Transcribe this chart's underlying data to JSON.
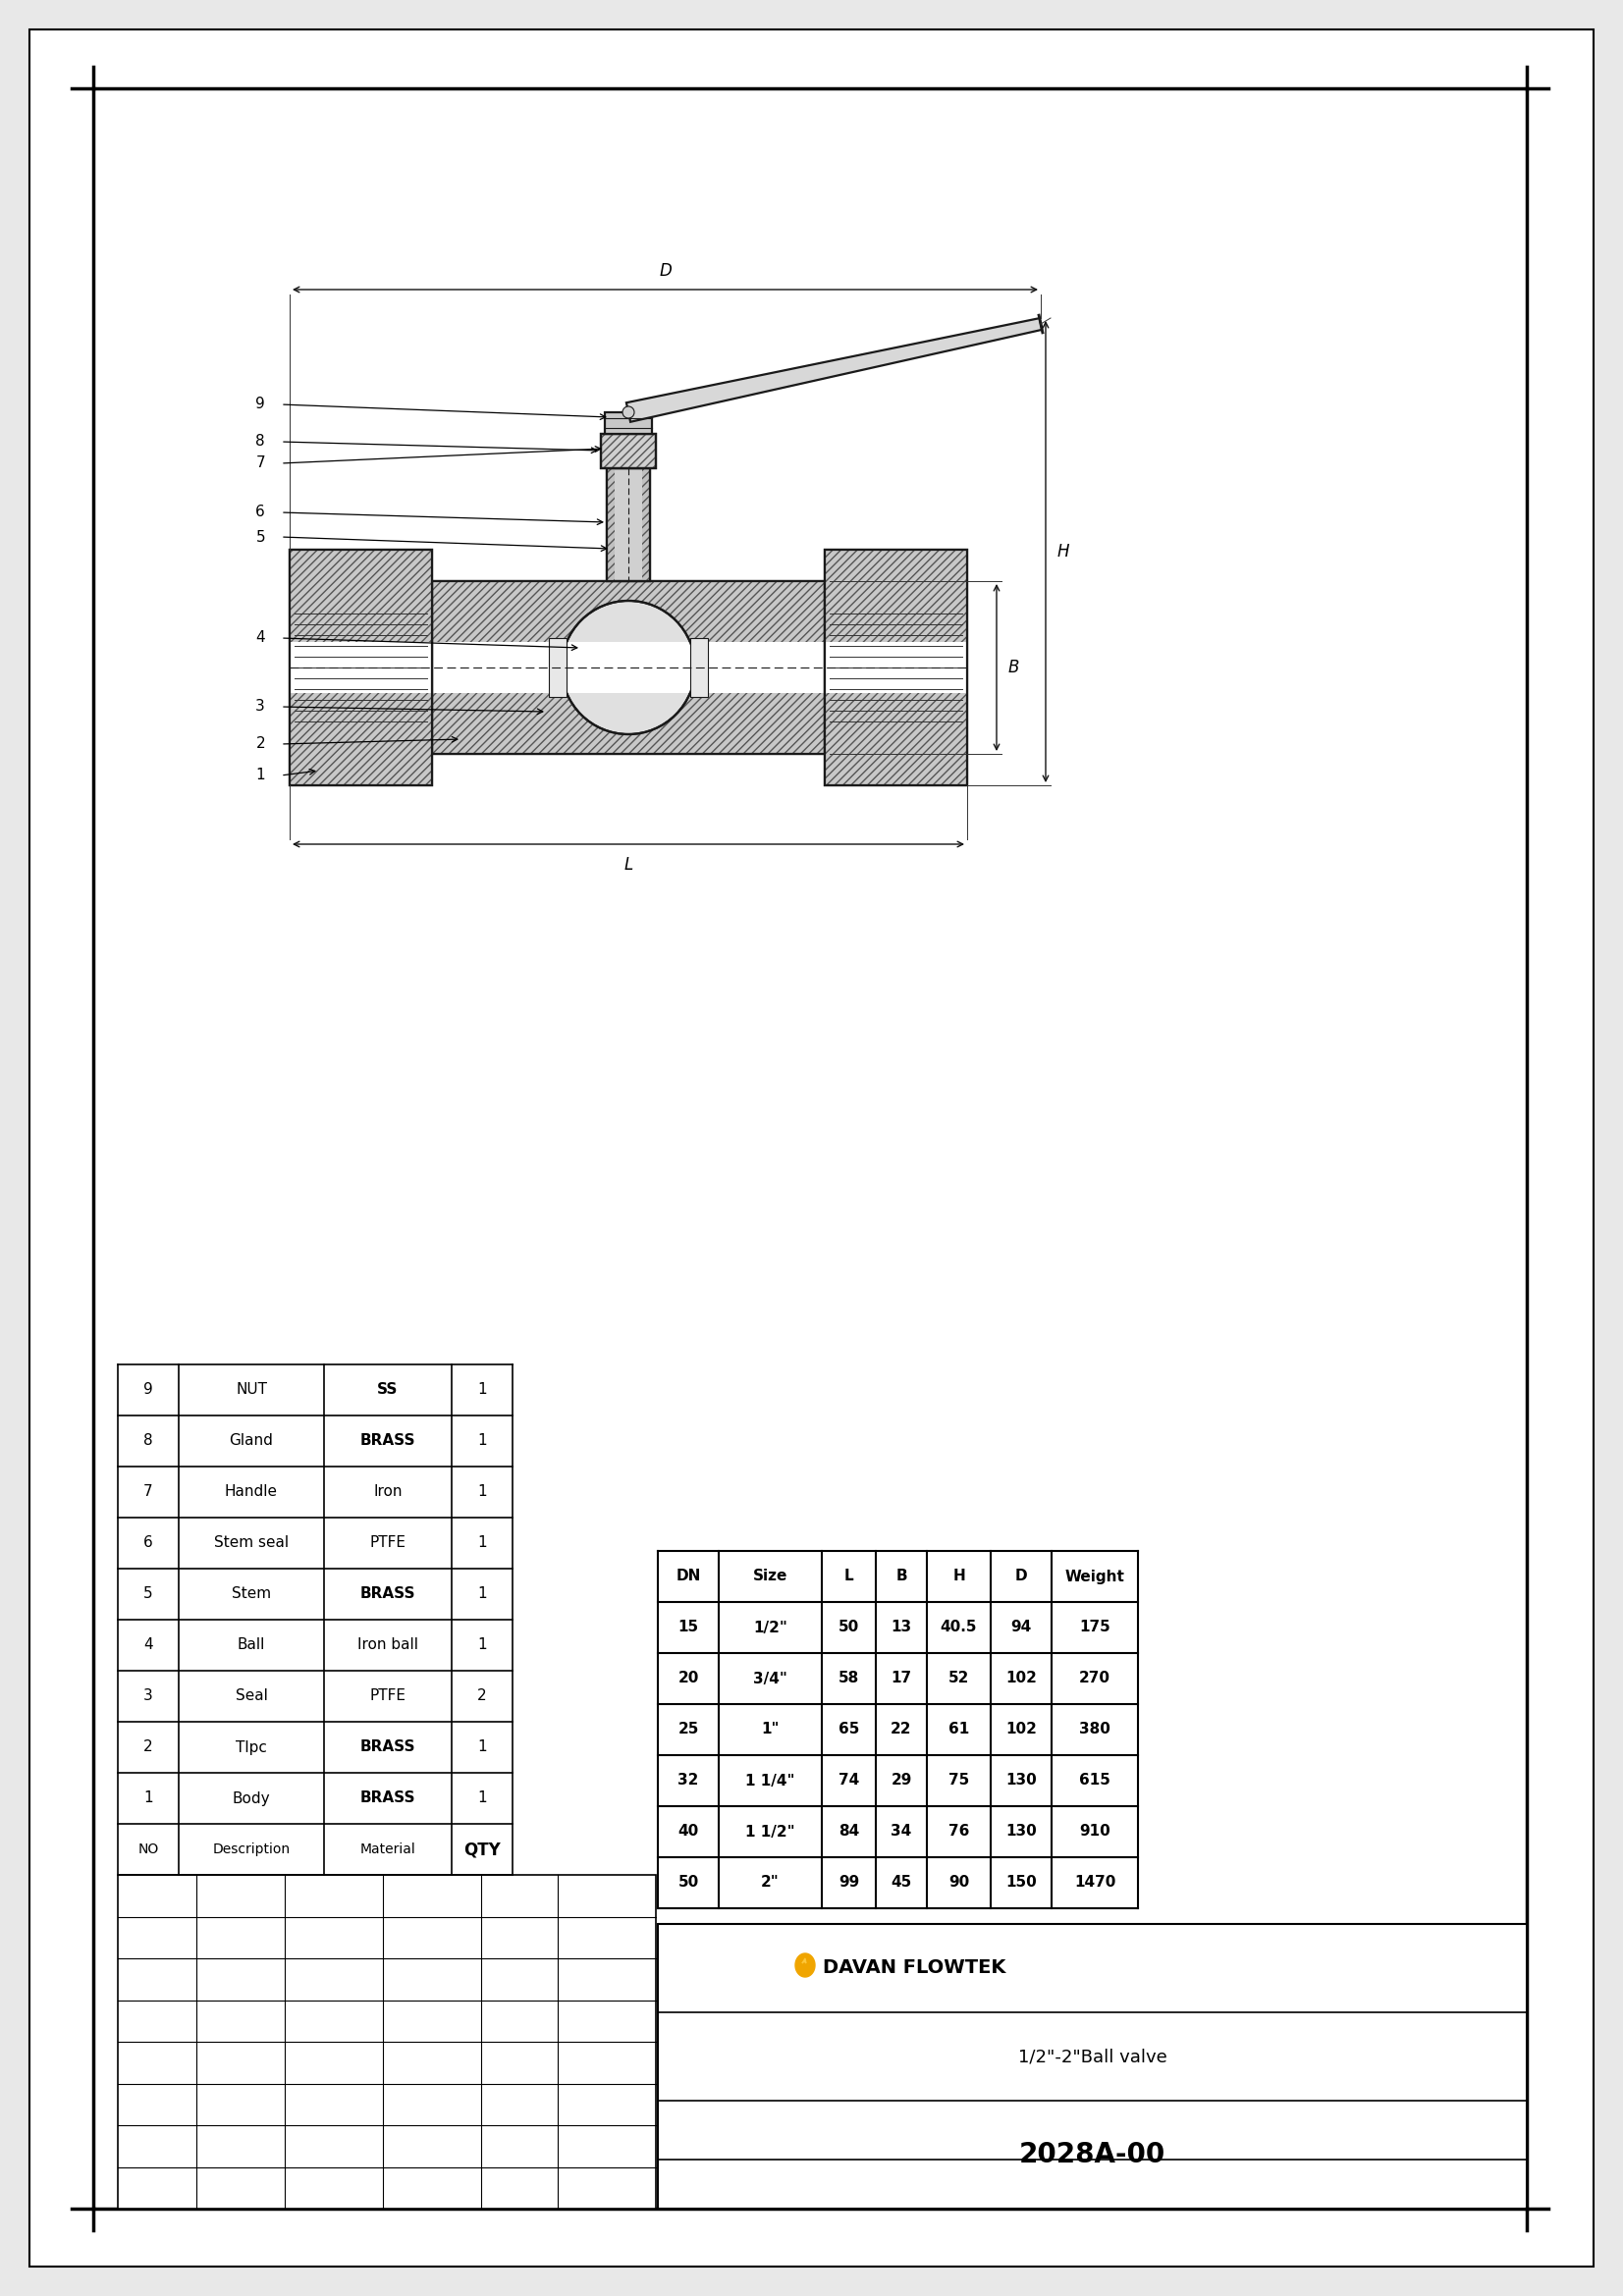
{
  "page_bg": "#e8e8e8",
  "drawing_bg": "#ffffff",
  "title": "1/2\"-2\"Ball valve",
  "drawing_number": "2028A-00",
  "company": "DAVAN FLOWTEK",
  "parts_list": [
    {
      "no": "9",
      "description": "NUT",
      "material": "SS",
      "qty": "1"
    },
    {
      "no": "8",
      "description": "Gland",
      "material": "BRASS",
      "qty": "1"
    },
    {
      "no": "7",
      "description": "Handle",
      "material": "Iron",
      "qty": "1"
    },
    {
      "no": "6",
      "description": "Stem seal",
      "material": "PTFE",
      "qty": "1"
    },
    {
      "no": "5",
      "description": "Stem",
      "material": "BRASS",
      "qty": "1"
    },
    {
      "no": "4",
      "description": "Ball",
      "material": "Iron ball",
      "qty": "1"
    },
    {
      "no": "3",
      "description": "Seal",
      "material": "PTFE",
      "qty": "2"
    },
    {
      "no": "2",
      "description": "Tlpc",
      "material": "BRASS",
      "qty": "1"
    },
    {
      "no": "1",
      "description": "Body",
      "material": "BRASS",
      "qty": "1"
    },
    {
      "no": "NO",
      "description": "Description",
      "material": "Material",
      "qty": "QTY"
    }
  ],
  "spec_table": {
    "headers": [
      "DN",
      "Size",
      "L",
      "B",
      "H",
      "D",
      "Weight"
    ],
    "rows": [
      [
        "15",
        "1/2\"",
        "50",
        "13",
        "40.5",
        "94",
        "175"
      ],
      [
        "20",
        "3/4\"",
        "58",
        "17",
        "52",
        "102",
        "270"
      ],
      [
        "25",
        "1\"",
        "65",
        "22",
        "61",
        "102",
        "380"
      ],
      [
        "32",
        "1 1/4\"",
        "74",
        "29",
        "75",
        "130",
        "615"
      ],
      [
        "40",
        "1 1/2\"",
        "84",
        "34",
        "76",
        "130",
        "910"
      ],
      [
        "50",
        "2\"",
        "99",
        "45",
        "90",
        "150",
        "1470"
      ]
    ]
  }
}
